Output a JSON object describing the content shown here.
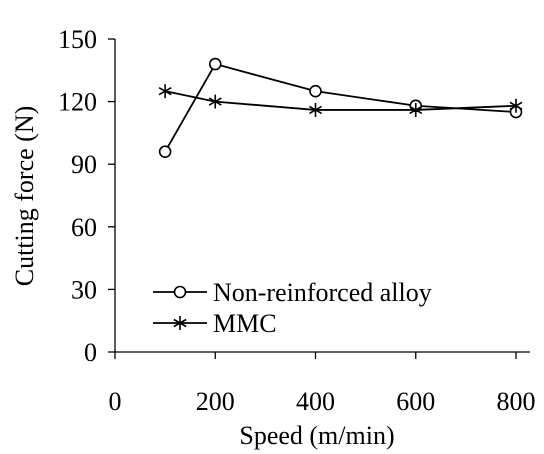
{
  "chart_data": {
    "type": "line",
    "xlabel": "Speed (m/min)",
    "ylabel": "Cutting force (N)",
    "xlim": [
      0,
      800
    ],
    "ylim": [
      0,
      150
    ],
    "x_ticks": [
      "0",
      "200",
      "400",
      "600",
      "800"
    ],
    "y_ticks": [
      "0",
      "30",
      "60",
      "90",
      "120",
      "150"
    ],
    "x_tick_values": [
      0,
      200,
      400,
      600,
      800
    ],
    "y_tick_values": [
      0,
      30,
      60,
      90,
      120,
      150
    ],
    "grid": false,
    "legend_position": "bottom-left",
    "series": [
      {
        "name": "Non-reinforced alloy",
        "marker": "circle",
        "color": "#000000",
        "points": [
          {
            "x": 100,
            "y": 96
          },
          {
            "x": 200,
            "y": 138
          },
          {
            "x": 400,
            "y": 125
          },
          {
            "x": 600,
            "y": 118
          },
          {
            "x": 800,
            "y": 115
          }
        ]
      },
      {
        "name": "MMC",
        "marker": "asterisk",
        "color": "#000000",
        "points": [
          {
            "x": 100,
            "y": 125
          },
          {
            "x": 200,
            "y": 120
          },
          {
            "x": 400,
            "y": 116
          },
          {
            "x": 600,
            "y": 116
          },
          {
            "x": 800,
            "y": 118
          }
        ]
      }
    ]
  }
}
